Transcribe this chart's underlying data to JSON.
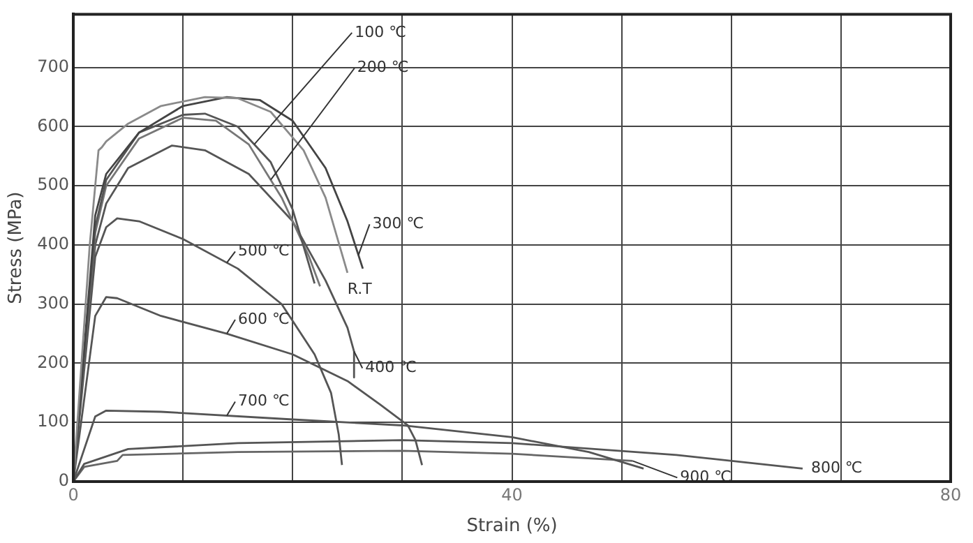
{
  "chart_data": {
    "type": "line",
    "xlabel": "Strain (%)",
    "ylabel": "Stress (MPa)",
    "xlim": [
      0,
      80
    ],
    "xticks": [
      0,
      {
        "value": 10,
        "label": null
      },
      {
        "value": 20,
        "label": null
      },
      {
        "value": 30,
        "label": null
      },
      40,
      {
        "value": 50,
        "label": null
      },
      {
        "value": 60,
        "label": null
      },
      {
        "value": 70,
        "label": null
      },
      80
    ],
    "ylim": [
      0,
      790
    ],
    "yticks": [
      0,
      100,
      200,
      300,
      400,
      500,
      600,
      700
    ],
    "grid": true,
    "legend": false,
    "marker": "none",
    "line_style": "solid",
    "series": [
      {
        "color": "#8a8a8a",
        "x": [
          0,
          1.5,
          2.3,
          2.6,
          3,
          5,
          8,
          12,
          15,
          18,
          21,
          23,
          25
        ],
        "values": [
          0,
          400,
          560,
          565,
          575,
          605,
          635,
          650,
          648,
          625,
          560,
          480,
          353
        ]
      },
      {
        "color": "#444444",
        "x": [
          0,
          2,
          3,
          6,
          10,
          14,
          17,
          20,
          23,
          25,
          26.4
        ],
        "values": [
          0,
          450,
          520,
          590,
          635,
          650,
          645,
          610,
          530,
          440,
          360
        ]
      },
      {
        "color": "#555555",
        "x": [
          0,
          2,
          3,
          6,
          10,
          12,
          15,
          18,
          20,
          22
        ],
        "values": [
          0,
          430,
          510,
          590,
          620,
          622,
          600,
          540,
          460,
          335
        ]
      },
      {
        "color": "#777777",
        "x": [
          0,
          2,
          3,
          6,
          10,
          13,
          16,
          19,
          21.5,
          22.5
        ],
        "values": [
          0,
          420,
          500,
          580,
          615,
          610,
          570,
          480,
          380,
          330
        ]
      },
      {
        "color": "#555555",
        "x": [
          0,
          2,
          3,
          5,
          9,
          12,
          16,
          20,
          23,
          25,
          25.6,
          25.6
        ],
        "values": [
          0,
          400,
          470,
          530,
          568,
          560,
          520,
          440,
          340,
          260,
          220,
          176
        ]
      },
      {
        "color": "#555555",
        "x": [
          0,
          2,
          3,
          4,
          6,
          10,
          15,
          19,
          22,
          23.5,
          24.2,
          24.5
        ],
        "values": [
          0,
          380,
          430,
          445,
          440,
          410,
          360,
          300,
          215,
          150,
          80,
          28
        ]
      },
      {
        "color": "#555555",
        "x": [
          0,
          2,
          3,
          4,
          8,
          14,
          20,
          25,
          28,
          30.5,
          31.2,
          31.8
        ],
        "values": [
          0,
          280,
          312,
          310,
          280,
          250,
          215,
          170,
          130,
          95,
          70,
          28
        ]
      },
      {
        "color": "#555555",
        "x": [
          0,
          2,
          3,
          8,
          20,
          30,
          40,
          47,
          52
        ],
        "values": [
          0,
          110,
          120,
          118,
          105,
          95,
          75,
          50,
          22
        ]
      },
      {
        "color": "#555555",
        "x": [
          0,
          1,
          5,
          15,
          30,
          40,
          55,
          66.5
        ],
        "values": [
          0,
          30,
          55,
          65,
          70,
          65,
          45,
          22
        ]
      },
      {
        "color": "#666666",
        "x": [
          0,
          1,
          4,
          4.5,
          15,
          30,
          40,
          51
        ],
        "values": [
          0,
          25,
          35,
          45,
          50,
          52,
          47,
          35
        ]
      }
    ],
    "annotations": [
      {
        "text": "100 ℃",
        "x": 16.5,
        "y": 570
      },
      {
        "text": "200 ℃",
        "x": 18,
        "y": 510
      },
      {
        "text": "300 ℃",
        "x": 26,
        "y": 383
      },
      {
        "text": "R.T",
        "x": 25,
        "y": 353
      },
      {
        "text": "400 ℃",
        "x": 25.6,
        "y": 220
      },
      {
        "text": "500 ℃",
        "x": 14,
        "y": 370
      },
      {
        "text": "600 ℃",
        "x": 14,
        "y": 250
      },
      {
        "text": "700 ℃",
        "x": 14,
        "y": 111.5
      },
      {
        "text": "800 ℃",
        "x": 66.5,
        "y": 22
      },
      {
        "text": "900 ℃",
        "x": 51,
        "y": 35
      }
    ]
  }
}
